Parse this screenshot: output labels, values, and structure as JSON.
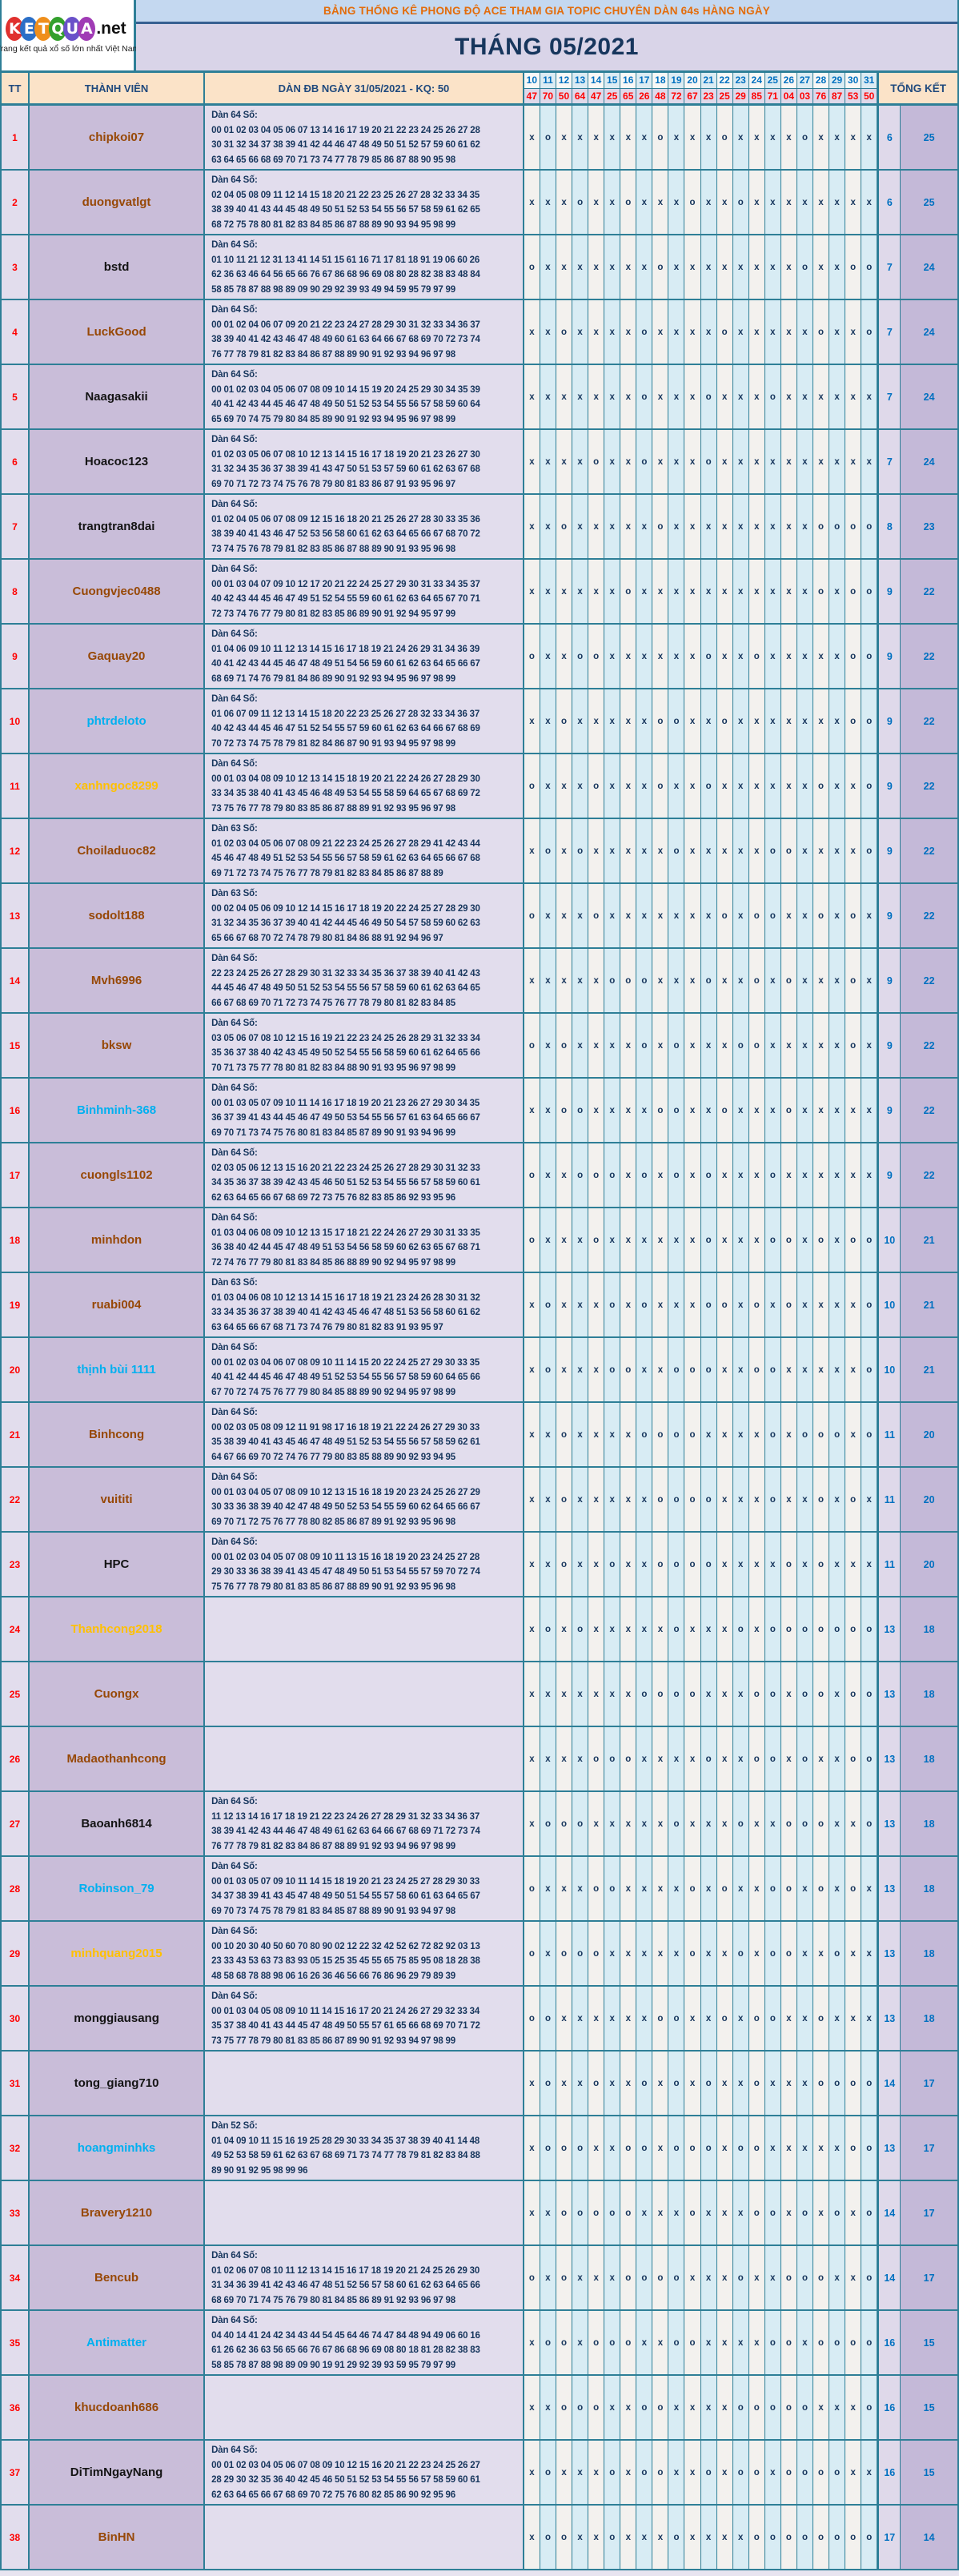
{
  "logo": {
    "letters": [
      {
        "ch": "K",
        "color": "#e0312e"
      },
      {
        "ch": "E",
        "color": "#2b6fc7"
      },
      {
        "ch": "T",
        "color": "#ef8f1c"
      },
      {
        "ch": "Q",
        "color": "#33a02c"
      },
      {
        "ch": "U",
        "color": "#6a51c9"
      },
      {
        "ch": "A",
        "color": "#a03bb5"
      }
    ],
    "suffix": ".net",
    "tagline": "Trang kết quả xổ số lớn nhất Việt Nam"
  },
  "banner": {
    "title": "BẢNG THỐNG KÊ PHONG ĐỘ ACE THAM GIA TOPIC CHUYÊN DÀN 64s HÀNG NGÀY"
  },
  "month_title": "THÁNG 05/2021",
  "table": {
    "headers": {
      "tt": "TT",
      "member": "THÀNH VIÊN",
      "dan": "DÀN ĐB NGÀY 31/05/2021 - KQ: 50",
      "total": "TỔNG KẾT"
    },
    "days": [
      "10",
      "11",
      "12",
      "13",
      "14",
      "15",
      "16",
      "17",
      "18",
      "19",
      "20",
      "21",
      "22",
      "23",
      "24",
      "25",
      "26",
      "27",
      "28",
      "29",
      "30",
      "31"
    ],
    "kq": [
      "47",
      "70",
      "50",
      "64",
      "47",
      "25",
      "65",
      "26",
      "48",
      "72",
      "67",
      "23",
      "25",
      "29",
      "85",
      "71",
      "04",
      "03",
      "76",
      "87",
      "53",
      "50"
    ],
    "rows": [
      {
        "tt": "1",
        "member": "chipkoi07",
        "color": "brown",
        "dan_label": "Dàn 64 Số:",
        "dan_lines": [
          "00 01 02 03 04 05 06 07 13 14 16 17 19 20 21 22 23 24 25 26 27 28",
          "30 31 32 34 37 38 39 41 42 44 46 47 48 49 50 51 52 57 59 60 61 62",
          "63 64 65 66 68 69 70 71 73 74 77 78 79 85 86 87 88 90 95 98"
        ],
        "marks": "xoxxxxxxoxxxoxxxxoxxxx",
        "t1": "6",
        "t2": "25"
      },
      {
        "tt": "2",
        "member": "duongvatlgt",
        "color": "brown",
        "dan_label": "Dàn 64 Số:",
        "dan_lines": [
          "02 04 05 08 09 11 12 14 15 18 20 21 22 23 25 26 27 28 32 33 34 35",
          "38 39 40 41 43 44 45 48 49 50 51 52 53 54 55 56 57 58 59 61 62 65",
          "68 72 75 78 80 81 82 83 84 85 86 87 88 89 90 93 94 95 98 99"
        ],
        "marks": "xxxoxxoxxxoxxoxxxxxxxx",
        "t1": "6",
        "t2": "25"
      },
      {
        "tt": "3",
        "member": "bstd",
        "color": "black",
        "dan_label": "Dàn 64 Số:",
        "dan_lines": [
          "01 10 11 21 12 31 13 41 14 51 15 61 16 71 17 81 18 91 19 06 60 26",
          "62 36 63 46 64 56 65 66 76 67 86 68 96 69 08 80 28 82 38 83 48 84",
          "58 85 78 87 88 98 89 09 90 29 92 39 93 49 94 59 95 79 97 99"
        ],
        "marks": "oxxxxxxxoxxxxxxxxoxxoo",
        "t1": "7",
        "t2": "24"
      },
      {
        "tt": "4",
        "member": "LuckGood",
        "color": "brown",
        "dan_label": "Dàn 64 Số:",
        "dan_lines": [
          "00 01 02 04 06 07 09 20 21 22 23 24 27 28 29 30 31 32 33 34 36 37",
          "38 39 40 41 42 43 46 47 48 49 60 61 63 64 66 67 68 69 70 72 73 74",
          "76 77 78 79 81 82 83 84 86 87 88 89 90 91 92 93 94 96 97 98"
        ],
        "marks": "xxoxxxxoxxxxoxxxxxoxxo",
        "t1": "7",
        "t2": "24"
      },
      {
        "tt": "5",
        "member": "Naagasakii",
        "color": "black",
        "dan_label": "Dàn 64 Số:",
        "dan_lines": [
          "00 01 02 03 04 05 06 07 08 09 10 14 15 19 20 24 25 29 30 34 35 39",
          "40 41 42 43 44 45 46 47 48 49 50 51 52 53 54 55 56 57 58 59 60 64",
          "65 69 70 74 75 79 80 84 85 89 90 91 92 93 94 95 96 97 98 99"
        ],
        "marks": "xxxxxxxoxxxoxxxoxxxxxx",
        "t1": "7",
        "t2": "24"
      },
      {
        "tt": "6",
        "member": "Hoacoc123",
        "color": "black",
        "dan_label": "Dàn 64 Số:",
        "dan_lines": [
          "01 02 03 05 06 07 08 10 12 13 14 15 16 17 18 19 20 21 23 26 27 30",
          "31 32 34 35 36 37 38 39 41 43 47 50 51 53 57 59 60 61 62 63 67 68",
          "69 70 71 72 73 74 75 76 78 79 80 81 83 86 87 91 93 95 96 97"
        ],
        "marks": "xxxxoxxoxxxoxxxxxxxxxx",
        "t1": "7",
        "t2": "24"
      },
      {
        "tt": "7",
        "member": "trangtran8dai",
        "color": "black",
        "dan_label": "Dàn 64 Số:",
        "dan_lines": [
          "01 02 04 05 06 07 08 09 12 15 16 18 20 21 25 26 27 28 30 33 35 36",
          "38 39 40 41 43 46 47 52 53 56 58 60 61 62 63 64 65 66 67 68 70 72",
          "73 74 75 76 78 79 81 82 83 85 86 87 88 89 90 91 93 95 96 98"
        ],
        "marks": "xxoxxxxxoxxxxxxxxxoooo",
        "t1": "8",
        "t2": "23"
      },
      {
        "tt": "8",
        "member": "Cuongvjec0488",
        "color": "brown",
        "dan_label": "Dàn 64 Số:",
        "dan_lines": [
          "00 01 03 04 07 09 10 12 17 20 21 22 24 25 27 29 30 31 33 34 35 37",
          "40 42 43 44 45 46 47 49 51 52 54 55 59 60 61 62 63 64 65 67 70 71",
          "72 73 74 76 77 79 80 81 82 83 85 86 89 90 91 92 94 95 97 99"
        ],
        "marks": "xxxxxxoxxxxxxxxxxxoxoo",
        "t1": "9",
        "t2": "22"
      },
      {
        "tt": "9",
        "member": "Gaquay20",
        "color": "brown",
        "dan_label": "Dàn 64 Số:",
        "dan_lines": [
          "01 04 06 09 10 11 12 13 14 15 16 17 18 19 21 24 26 29 31 34 36 39",
          "40 41 42 43 44 45 46 47 48 49 51 54 56 59 60 61 62 63 64 65 66 67",
          "68 69 71 74 76 79 81 84 86 89 90 91 92 93 94 95 96 97 98 99"
        ],
        "marks": "oxxooxxxxxxoxxoxxxxxoo",
        "t1": "9",
        "t2": "22"
      },
      {
        "tt": "10",
        "member": "phtrdeloto",
        "color": "blue",
        "dan_label": "Dàn 64 Số:",
        "dan_lines": [
          "01 06 07 09 11 12 13 14 15 18 20 22 23 25 26 27 28 32 33 34 36 37",
          "40 42 43 44 45 46 47 51 52 54 55 57 59 60 61 62 63 64 66 67 68 69",
          "70 72 73 74 75 78 79 81 82 84 86 87 90 91 93 94 95 97 98 99"
        ],
        "marks": "xxoxxxxxooxxoxxxxxxxoo",
        "t1": "9",
        "t2": "22"
      },
      {
        "tt": "11",
        "member": "xanhngoc8299",
        "color": "orange",
        "dan_label": "Dàn 64 Số:",
        "dan_lines": [
          "00 01 03 04 08 09 10 12 13 14 15 18 19 20 21 22 24 26 27 28 29 30",
          "33 34 35 38 40 41 43 45 46 48 49 53 54 55 58 59 64 65 67 68 69 72",
          "73 75 76 77 78 79 80 83 85 86 87 88 89 91 92 93 95 96 97 98"
        ],
        "marks": "oxxxoxxxoxxoxxxxxxoxxo",
        "t1": "9",
        "t2": "22"
      },
      {
        "tt": "12",
        "member": "Choiladuoc82",
        "color": "brown",
        "dan_label": "Dàn 63 Số:",
        "dan_lines": [
          "01 02 03 04 05 06 07 08 09 21 22 23 24 25 26 27 28 29 41 42 43 44",
          "45 46 47 48 49 51 52 53 54 55 56 57 58 59 61 62 63 64 65 66 67 68",
          "69 71 72 73 74 75 76 77 78 79 81 82 83 84 85 86 87 88 89"
        ],
        "marks": "xoxoxxxxxoxxxxxooxxxxo",
        "t1": "9",
        "t2": "22"
      },
      {
        "tt": "13",
        "member": "sodolt188",
        "color": "brown",
        "dan_label": "Dàn 63 Số:",
        "dan_lines": [
          "00 02 04 05 06 09 10 12 14 15 16 17 18 19 20 22 24 25 27 28 29 30",
          "31 32 34 35 36 37 39 40 41 42 44 45 46 49 50 54 57 58 59 60 62 63",
          "65 66 67 68 70 72 74 78 79 80 81 84 86 88 91 92 94 96 97"
        ],
        "marks": "oxxxoxxxxxxxoxooxxoxox",
        "t1": "9",
        "t2": "22"
      },
      {
        "tt": "14",
        "member": "Mvh6996",
        "color": "brown",
        "dan_label": "Dàn 64 Số:",
        "dan_lines": [
          "22 23 24 25 26 27 28 29 30 31 32 33 34 35 36 37 38 39 40 41 42 43",
          "44 45 46 47 48 49 50 51 52 53 54 55 56 57 58 59 60 61 62 63 64 65",
          "66 67 68 69 70 71 72 73 74 75 76 77 78 79 80 81 82 83 84 85"
        ],
        "marks": "xxxxxoooxxxoxxoxoxxxox",
        "t1": "9",
        "t2": "22"
      },
      {
        "tt": "15",
        "member": "bksw",
        "color": "brown",
        "dan_label": "Dàn 64 Số:",
        "dan_lines": [
          "03 05 06 07 08 10 12 15 16 19 21 22 23 24 25 26 28 29 31 32 33 34",
          "35 36 37 38 40 42 43 45 49 50 52 54 55 56 58 59 60 61 62 64 65 66",
          "70 71 73 75 77 78 80 81 82 83 84 88 90 91 93 95 96 97 98 99"
        ],
        "marks": "oxoxxxxoxoxxxooxxxxxox",
        "t1": "9",
        "t2": "22"
      },
      {
        "tt": "16",
        "member": "Binhminh-368",
        "color": "blue",
        "dan_label": "Dàn 64 Số:",
        "dan_lines": [
          "00 01 03 05 07 09 10 11 14 16 17 18 19 20 21 23 26 27 29 30 34 35",
          "36 37 39 41 43 44 45 46 47 49 50 53 54 55 56 57 61 63 64 65 66 67",
          "69 70 71 73 74 75 76 80 81 83 84 85 87 89 90 91 93 94 96 99"
        ],
        "marks": "xxooxxxxooxxoxxxoxxxxx",
        "t1": "9",
        "t2": "22"
      },
      {
        "tt": "17",
        "member": "cuongls1102",
        "color": "brown",
        "dan_label": "Dàn 64 Số:",
        "dan_lines": [
          "02 03 05 06 12 13 15 16 20 21 22 23 24 25 26 27 28 29 30 31 32 33",
          "34 35 36 37 38 39 42 43 45 46 50 51 52 53 54 55 56 57 58 59 60 61",
          "62 63 64 65 66 67 68 69 72 73 75 76 82 83 85 86 92 93 95 96"
        ],
        "marks": "oxxoooxoxoxoxxxoxxxxxx",
        "t1": "9",
        "t2": "22"
      },
      {
        "tt": "18",
        "member": "minhdon",
        "color": "brown",
        "dan_label": "Dàn 64 Số:",
        "dan_lines": [
          "01 03 04 06 08 09 10 12 13 15 17 18 21 22 24 26 27 29 30 31 33 35",
          "36 38 40 42 44 45 47 48 49 51 53 54 56 58 59 60 62 63 65 67 68 71",
          "72 74 76 77 79 80 81 83 84 85 86 88 89 90 92 94 95 97 98 99"
        ],
        "marks": "oxxxoxxxxxxoxxxooxoxoo",
        "t1": "10",
        "t2": "21"
      },
      {
        "tt": "19",
        "member": "ruabi004",
        "color": "brown",
        "dan_label": "Dàn 63 Số:",
        "dan_lines": [
          "01 03 04 06 08 10 12 13 14 15 16 17 18 19 21 23 24 26 28 30 31 32",
          "33 34 35 36 37 38 39 40 41 42 43 45 46 47 48 51 53 56 58 60 61 62",
          "63 64 65 66 67 68 71 73 74 76 79 80 81 82 83 91 93 95 97"
        ],
        "marks": "xoxxxoxoxxxooxoxoxxxxo",
        "t1": "10",
        "t2": "21"
      },
      {
        "tt": "20",
        "member": "thịnh bùi 1111",
        "color": "blue",
        "dan_label": "Dàn 64 Số:",
        "dan_lines": [
          "00 01 02 03 04 06 07 08 09 10 11 14 15 20 22 24 25 27 29 30 33 35",
          "40 41 42 44 45 46 47 48 49 51 52 53 54 55 56 57 58 59 60 64 65 66",
          "67 70 72 74 75 76 77 79 80 84 85 88 89 90 92 94 95 97 98 99"
        ],
        "marks": "xoxxxooxxoooxxooxxxxxo",
        "t1": "10",
        "t2": "21"
      },
      {
        "tt": "21",
        "member": "Binhcong",
        "color": "brown",
        "dan_label": "Dàn 64 Số:",
        "dan_lines": [
          "00 02 03 05 08 09 12 11 91 98 17 16 18 19 21 22 24 26 27 29 30 33",
          "35 38 39 40 41 43 45 46 47 48 49 51 52 53 54 55 56 57 58 59 62 61",
          "64 67 66 69 70 72 74 76 77 79 80 83 85 88 89 90 92 93 94 95"
        ],
        "marks": "xxoxxxxooooxxxxoxoooxo",
        "t1": "11",
        "t2": "20"
      },
      {
        "tt": "22",
        "member": "vuititi",
        "color": "brown",
        "dan_label": "Dàn 64 Số:",
        "dan_lines": [
          "00 01 03 04 05 07 08 09 10 12 13 15 16 18 19 20 23 24 25 26 27 29",
          "30 33 36 38 39 40 42 47 48 49 50 52 53 54 55 59 60 62 64 65 66 67",
          "69 70 71 72 75 76 77 78 80 82 85 86 87 89 91 92 93 95 96 98"
        ],
        "marks": "xxoxxxxxooooxxxoxxoxox",
        "t1": "11",
        "t2": "20"
      },
      {
        "tt": "23",
        "member": "HPC",
        "color": "black",
        "dan_label": "Dàn 64 Số:",
        "dan_lines": [
          "00 01 02 03 04 05 07 08 09 10 11 13 15 16 18 19 20 23 24 25 27 28",
          "29 30 33 36 38 39 41 43 45 47 48 49 50 51 53 54 55 57 59 70 72 74",
          "75 76 77 78 79 80 81 83 85 86 87 88 89 90 91 92 93 95 96 98"
        ],
        "marks": "xxoxxoxxooooxxxxoxoxxx",
        "t1": "11",
        "t2": "20"
      },
      {
        "tt": "24",
        "member": "Thanhcong2018",
        "color": "orange",
        "dan_label": "",
        "dan_lines": [],
        "marks": "xoxoxxxxxoxxxoxooooooo",
        "t1": "13",
        "t2": "18"
      },
      {
        "tt": "25",
        "member": "Cuongx",
        "color": "brown",
        "dan_label": "",
        "dan_lines": [],
        "marks": "xxxxxxxooooxxxooxooxoo",
        "t1": "13",
        "t2": "18"
      },
      {
        "tt": "26",
        "member": "Madaothanhcong",
        "color": "brown",
        "dan_label": "",
        "dan_lines": [],
        "marks": "xxxxoooxxxxoxxooxoxxoo",
        "t1": "13",
        "t2": "18"
      },
      {
        "tt": "27",
        "member": "Baoanh6814",
        "color": "black",
        "dan_label": "Dàn 64 Số:",
        "dan_lines": [
          "11 12 13 14 16 17 18 19 21 22 23 24 26 27 28 29 31 32 33 34 36 37",
          "38 39 41 42 43 44 46 47 48 49 61 62 63 64 66 67 68 69 71 72 73 74",
          "76 77 78 79 81 82 83 84 86 87 88 89 91 92 93 94 96 97 98 99"
        ],
        "marks": "xoooxxxxxoxxxoxxoooxxo",
        "t1": "13",
        "t2": "18"
      },
      {
        "tt": "28",
        "member": "Robinson_79",
        "color": "blue",
        "dan_label": "Dàn 64 Số:",
        "dan_lines": [
          "00 01 03 05 07 09 10 11 14 15 18 19 20 21 23 24 25 27 28 29 30 33",
          "34 37 38 39 41 43 45 47 48 49 50 51 54 55 57 58 60 61 63 64 65 67",
          "69 70 73 74 75 78 79 81 83 84 85 87 88 89 90 91 93 94 97 98"
        ],
        "marks": "oxxxooxxxxoxoxxooxoxox",
        "t1": "13",
        "t2": "18"
      },
      {
        "tt": "29",
        "member": "minhquang2015",
        "color": "orange",
        "dan_label": "Dàn 64 Số:",
        "dan_lines": [
          "00 10 20 30 40 50 60 70 80 90 02 12 22 32 42 52 62 72 82 92 03 13",
          "23 33 43 53 63 73 83 93 05 15 25 35 45 55 65 75 85 95 08 18 28 38",
          "48 58 68 78 88 98 06 16 26 36 46 56 66 76 86 96 29 79 89 39"
        ],
        "marks": "oxoooxxxxxoxxoxooxxoxx",
        "t1": "13",
        "t2": "18"
      },
      {
        "tt": "30",
        "member": "monggiausang",
        "color": "black",
        "dan_label": "Dàn 64 Số:",
        "dan_lines": [
          "00 01 03 04 05 08 09 10 11 14 15 16 17 20 21 24 26 27 29 32 33 34",
          "35 37 38 40 41 43 44 45 47 48 49 50 55 57 61 65 66 68 69 70 71 72",
          "73 75 77 78 79 80 81 83 85 86 87 89 90 91 92 93 94 97 98 99"
        ],
        "marks": "ooxxxxxxooxxoxooxxoxxx",
        "t1": "13",
        "t2": "18"
      },
      {
        "tt": "31",
        "member": "tong_giang710",
        "color": "black",
        "dan_label": "",
        "dan_lines": [],
        "marks": "xoxxoxxoxoxoxxoxxxoooo",
        "t1": "14",
        "t2": "17"
      },
      {
        "tt": "32",
        "member": "hoangminhks",
        "color": "blue",
        "dan_label": "Dàn 52 Số:",
        "dan_lines": [
          "01 04 09 10 11 15 16 19 25 28 29 30 33 34 35 37 38 39 40 41 14 48",
          "49 52 53 58 59 61 62 63 67 68 69 71 73 74 77 78 79 81 82 83 84 88",
          "89 90 91 92 95 98 99 96"
        ],
        "marks": "xoooxxooxoooxooxxxxxoo",
        "t1": "13",
        "t2": "17"
      },
      {
        "tt": "33",
        "member": "Bravery1210",
        "color": "brown",
        "dan_label": "",
        "dan_lines": [],
        "marks": "xxoooooxxxoxxxooxoxoxo",
        "t1": "14",
        "t2": "17"
      },
      {
        "tt": "34",
        "member": "Bencub",
        "color": "brown",
        "dan_label": "Dàn 64 Số:",
        "dan_lines": [
          "01 02 06 07 08 10 11 12 13 14 15 16 17 18 19 20 21 24 25 26 29 30",
          "31 34 36 39 41 42 43 46 47 48 51 52 56 57 58 60 61 62 63 64 65 66",
          "68 69 70 71 74 75 76 79 80 81 84 85 86 89 91 92 93 96 97 98"
        ],
        "marks": "oxoxxxooooxxxoxxoooxxo",
        "t1": "14",
        "t2": "17"
      },
      {
        "tt": "35",
        "member": "Antimatter",
        "color": "blue",
        "dan_label": "Dàn 64 Số:",
        "dan_lines": [
          "04 40 14 41 24 42 34 43 44 54 45 64 46 74 47 84 48 94 49 06 60 16",
          "61 26 62 36 63 56 65 66 76 67 86 68 96 69 08 80 18 81 28 82 38 83",
          "58 85 78 87 88 98 89 09 90 19 91 29 92 39 93 59 95 79 97 99"
        ],
        "marks": "xooxoooxxooxxxxooxoooo",
        "t1": "16",
        "t2": "15"
      },
      {
        "tt": "36",
        "member": "khucdoanh686",
        "color": "brown",
        "dan_label": "",
        "dan_lines": [],
        "marks": "xxoooxxooxxxxoooooxxxo",
        "t1": "16",
        "t2": "15"
      },
      {
        "tt": "37",
        "member": "DiTimNgayNang",
        "color": "black",
        "dan_label": "Dàn 64 Số:",
        "dan_lines": [
          "00 01 02 03 04 05 06 07 08 09 10 12 15 16 20 21 22 23 24 25 26 27",
          "28 29 30 32 35 36 40 42 45 46 50 51 52 53 54 55 56 57 58 59 60 61",
          "62 63 64 65 66 67 68 69 70 72 75 76 80 82 85 86 90 92 95 96"
        ],
        "marks": "xoxxxoxooxxoxooxooooxx",
        "t1": "16",
        "t2": "15"
      },
      {
        "tt": "38",
        "member": "BinHN",
        "color": "brown",
        "dan_label": "",
        "dan_lines": [],
        "marks": "xooxxoxxxoxxxxoooooooo",
        "t1": "17",
        "t2": "14"
      }
    ]
  }
}
